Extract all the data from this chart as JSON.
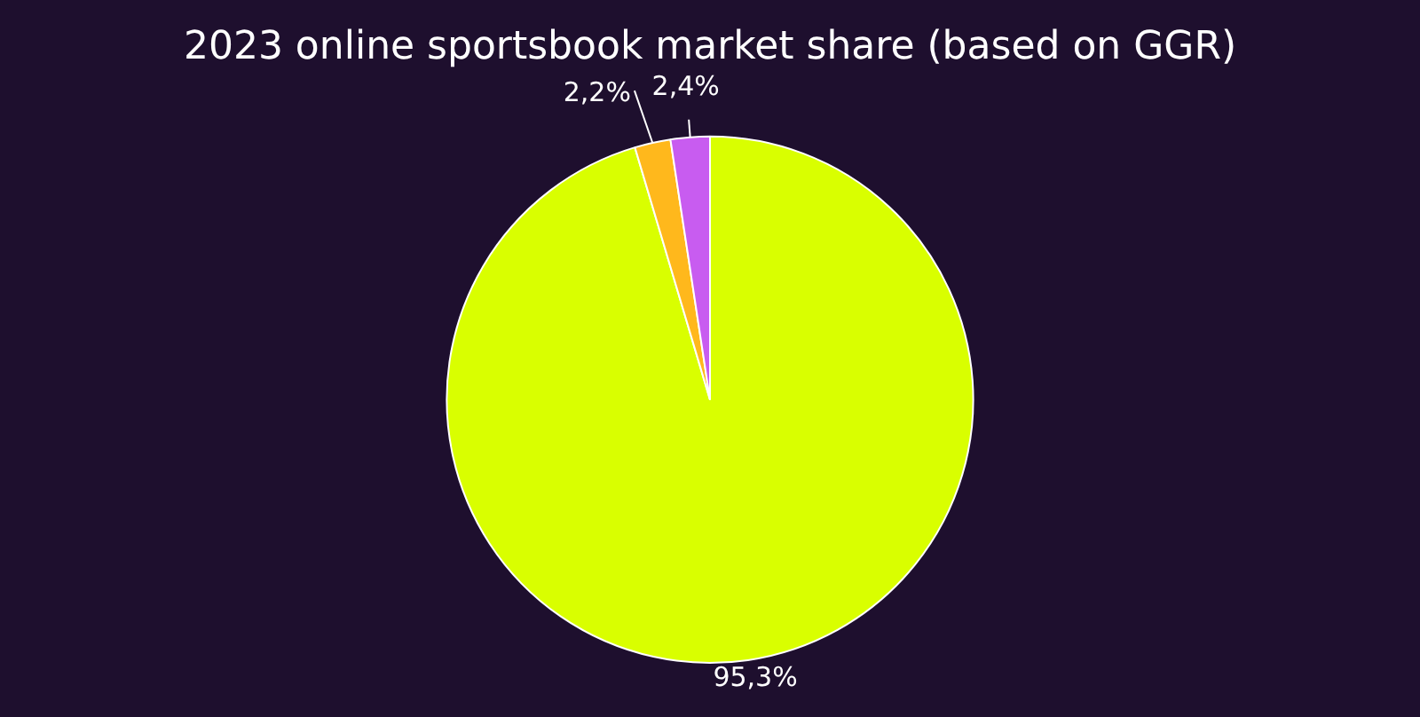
{
  "chart_data": {
    "type": "pie",
    "title": "2023 online sportsbook market share (based on GGR)",
    "categories": [
      null,
      null,
      null
    ],
    "values": [
      95.3,
      2.2,
      2.4
    ],
    "colors": [
      "#d9ff00",
      "#ffb81c",
      "#c85cf0"
    ],
    "value_labels": [
      "95,3%",
      "2,2%",
      "2,4%"
    ],
    "legend": false
  }
}
